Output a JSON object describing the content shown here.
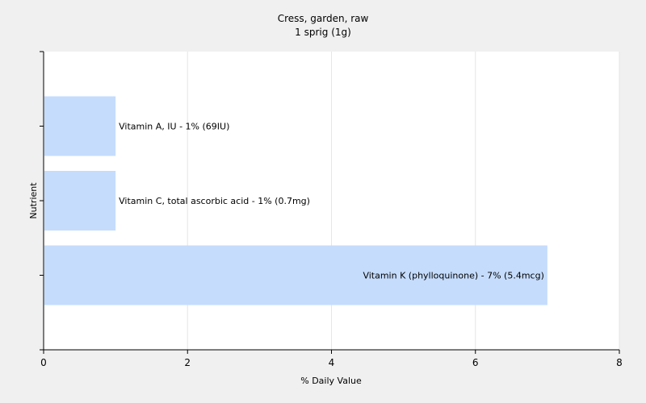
{
  "chart_data": {
    "type": "bar",
    "orientation": "horizontal",
    "title": "Cress, garden, raw",
    "subtitle": "1 sprig (1g)",
    "xlabel": "% Daily Value",
    "ylabel": "Nutrient",
    "xlim": [
      0,
      8
    ],
    "xticks": [
      "0",
      "2",
      "4",
      "6",
      "8"
    ],
    "grid": true,
    "categories": [
      "Vitamin A, IU",
      "Vitamin C, total ascorbic acid",
      "Vitamin K (phylloquinone)"
    ],
    "values": [
      1,
      1,
      7
    ],
    "data_labels": [
      "Vitamin A, IU - 1% (69IU)",
      "Vitamin C, total ascorbic acid - 1% (0.7mg)",
      "Vitamin K (phylloquinone) - 7% (5.4mcg)"
    ],
    "colors": {
      "bar": "#c5dcfc",
      "plot_bg": "#ffffff",
      "page_bg": "#f0f0f0",
      "grid": "#e6e6e6",
      "axis": "#000000"
    }
  }
}
